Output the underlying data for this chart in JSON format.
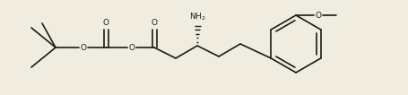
{
  "bg_color": "#f0ede0",
  "line_color": "#1a1a1a",
  "lw": 1.2,
  "lw_thick": 2.5,
  "fontsize_label": 6.5,
  "xlim": [
    0,
    455
  ],
  "ylim": [
    0,
    106
  ]
}
